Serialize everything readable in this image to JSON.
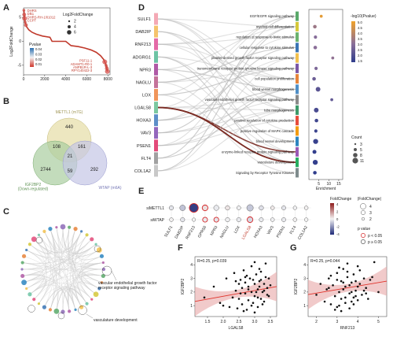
{
  "figure": {
    "panel_labels": [
      "A",
      "B",
      "C",
      "D",
      "E",
      "F",
      "G"
    ]
  },
  "chart_data": [
    {
      "panel": "A",
      "type": "scatter",
      "ylabel": "Log2FoldChange",
      "xticks": [
        0,
        2000,
        4000,
        6000,
        8000
      ],
      "yticks": [
        -5,
        0,
        5
      ],
      "ylim": [
        -7,
        7
      ],
      "xlim": [
        0,
        8200
      ],
      "gene_labels_top": [
        "DHRS",
        "Dlk1",
        "DHRS-RH-1/01012",
        "CCPT"
      ],
      "gene_labels_bottom": [
        "PSF11-1",
        "ADAMT1-R0-1",
        "ANPB1R-L-3",
        "RPY140422-3"
      ],
      "legend_size": {
        "title": "Log2FoldChange",
        "values": [
          "2",
          "4",
          "6"
        ]
      },
      "legend_color": {
        "title": "Pvalue",
        "ticks": [
          "0.04",
          "0.03",
          "0.02",
          "0.01"
        ]
      },
      "curve": [
        [
          30,
          6.5
        ],
        [
          80,
          5.0
        ],
        [
          150,
          4.0
        ],
        [
          300,
          3.0
        ],
        [
          500,
          2.4
        ],
        [
          800,
          1.9
        ],
        [
          1200,
          1.5
        ],
        [
          1800,
          1.1
        ],
        [
          2500,
          0.85
        ],
        [
          2700,
          0.0
        ],
        [
          4000,
          0.0
        ],
        [
          4500,
          -0.9
        ],
        [
          5200,
          -1.1
        ],
        [
          5800,
          -1.4
        ],
        [
          6400,
          -1.8
        ],
        [
          6900,
          -2.3
        ],
        [
          7300,
          -3.0
        ],
        [
          7600,
          -3.8
        ],
        [
          7800,
          -4.8
        ],
        [
          7950,
          -6.3
        ]
      ]
    },
    {
      "panel": "B",
      "type": "table",
      "sets": [
        {
          "name": "METTL1 (m7G)",
          "color": "#e8e1b0"
        },
        {
          "name": "IGF2BP2\n(Down-regulated)",
          "color": "#a9cda0"
        },
        {
          "name": "WTAP (m6A)",
          "color": "#c4c6e6"
        }
      ],
      "regions": {
        "METTL1_only": 440,
        "IGF2BP2_only": 2744,
        "WTAP_only": 292,
        "METTL1_IGF2BP2": 108,
        "METTL1_WTAP": 161,
        "IGF2BP2_WTAP": 59,
        "all_three": 21
      }
    },
    {
      "panel": "C",
      "type": "scatter",
      "description_labels": [
        "vascular endothelial growth factor\nreceptor signaling pathway",
        "vasculature development"
      ]
    },
    {
      "panel": "D",
      "type": "table",
      "genes": [
        {
          "name": "SULF1",
          "color": "#f4a9b5"
        },
        {
          "name": "DAB2IP",
          "color": "#f5c36b"
        },
        {
          "name": "RNF213",
          "color": "#e46aa7"
        },
        {
          "name": "ADGRG1",
          "color": "#6dc4a4"
        },
        {
          "name": "NPR3",
          "color": "#b05aa6"
        },
        {
          "name": "NAGLU",
          "color": "#c4739a"
        },
        {
          "name": "LOX",
          "color": "#f0955a"
        },
        {
          "name": "LGALS8",
          "color": "#7cc8a0"
        },
        {
          "name": "HOXA3",
          "color": "#5d8fc8"
        },
        {
          "name": "VAV3",
          "color": "#9467bd"
        },
        {
          "name": "PSEN1",
          "color": "#e34b7a"
        },
        {
          "name": "FLT4",
          "color": "#a1a1a1"
        },
        {
          "name": "COL1A2",
          "color": "#c8c8c8"
        }
      ],
      "pathways": [
        {
          "name": "EGF/EGFR signaling pathway",
          "color": "#5aa96a",
          "count": 3,
          "enrichment": 6.2,
          "logp": 4.8
        },
        {
          "name": "myeloid cell differentiation",
          "color": "#d5c83a",
          "count": 5,
          "enrichment": 3.0,
          "logp": 3.6
        },
        {
          "name": "regulation of response to biotic stimulus",
          "color": "#6bb36e",
          "count": 4,
          "enrichment": 3.3,
          "logp": 3.2
        },
        {
          "name": "cellular response to cytokine stimulus",
          "color": "#3a75b5",
          "count": 5,
          "enrichment": 3.2,
          "logp": 3.3
        },
        {
          "name": "platelet-derived growth factor receptor signaling pathway",
          "color": "#f2c14e",
          "count": 3,
          "enrichment": 12.0,
          "logp": 3.4
        },
        {
          "name": "transmembrane receptor protein tyrosine kinase signaling pathway",
          "color": "#7b57a6",
          "count": 4,
          "enrichment": 3.6,
          "logp": 3.0
        },
        {
          "name": "cell population proliferation",
          "color": "#e7843a",
          "count": 5,
          "enrichment": 2.6,
          "logp": 2.6
        },
        {
          "name": "blood vessel morphogenesis",
          "color": "#4f8fc6",
          "count": 8,
          "enrichment": 4.6,
          "logp": 2.2
        },
        {
          "name": "vascular endothelial growth factor receptor signaling pathway",
          "color": "#8a8a8a",
          "count": 3,
          "enrichment": 11.5,
          "logp": 2.4
        },
        {
          "name": "tube morphogenesis",
          "color": "#3c9a6a",
          "count": 8,
          "enrichment": 3.7,
          "logp": 1.8
        },
        {
          "name": "positive regulation of cytokine production",
          "color": "#e74c3c",
          "count": 5,
          "enrichment": 3.8,
          "logp": 1.6
        },
        {
          "name": "positive regulation of MAPK cascade",
          "color": "#f39c12",
          "count": 4,
          "enrichment": 3.5,
          "logp": 1.5
        },
        {
          "name": "blood vessel development",
          "color": "#2e86c1",
          "count": 9,
          "enrichment": 3.4,
          "logp": 1.4
        },
        {
          "name": "enzyme-linked receptor protein signaling pathway",
          "color": "#9b59b6",
          "count": 6,
          "enrichment": 2.8,
          "logp": 1.3
        },
        {
          "name": "vasculature development",
          "color": "#27ae60",
          "count": 9,
          "enrichment": 3.2,
          "logp": 1.3
        },
        {
          "name": "Signaling by Receptor Tyrosine Kinases",
          "color": "#7f8c8d",
          "count": 5,
          "enrichment": 3.0,
          "logp": 1.2
        }
      ],
      "xlabel": "Enrichment",
      "xticks": [
        5,
        10,
        15
      ],
      "xlim": [
        0,
        17
      ],
      "legend_color": {
        "title": "-log10(Pvalue)",
        "ticks": [
          "5.0",
          "4.5",
          "4.0",
          "3.5",
          "3.0",
          "2.5",
          "2.0",
          "1.5"
        ]
      },
      "legend_size": {
        "title": "Count",
        "values": [
          "3",
          "5",
          "8",
          "11"
        ]
      }
    },
    {
      "panel": "E",
      "type": "heatmap",
      "rows": [
        "siMETTL1",
        "siWTAP"
      ],
      "columns": [
        "SULF1",
        "DAB2IP",
        "RNF213",
        "GPR56",
        "NPR3",
        "NAGLU",
        "LOX",
        "LGALS8",
        "HOXA3",
        "VAV3",
        "PSEN1",
        "FLT4",
        "COL1A2"
      ],
      "highlight_column": "LGALS8",
      "fold_change": [
        [
          -0.3,
          -1.0,
          -3.6,
          0.4,
          -0.2,
          0.3,
          -0.1,
          -0.9,
          -0.4,
          0.2,
          -0.3,
          -0.1,
          0.1
        ],
        [
          0.1,
          -0.3,
          0.0,
          -0.2,
          -0.3,
          -0.1,
          -0.2,
          -0.6,
          -0.2,
          -0.1,
          -0.2,
          0.1,
          0.0
        ]
      ],
      "abs_fold_change": [
        [
          1.5,
          2.3,
          4.2,
          2.3,
          2.0,
          1.6,
          1.3,
          2.8,
          1.6,
          1.2,
          1.4,
          1.1,
          1.2
        ],
        [
          1.2,
          1.5,
          1.0,
          1.8,
          1.8,
          1.5,
          1.5,
          2.3,
          1.4,
          1.2,
          1.4,
          1.2,
          1.1
        ]
      ],
      "significant": [
        [
          false,
          false,
          true,
          true,
          false,
          false,
          false,
          false,
          false,
          false,
          false,
          false,
          false
        ],
        [
          false,
          false,
          false,
          true,
          true,
          false,
          false,
          true,
          false,
          false,
          false,
          false,
          false
        ]
      ],
      "legend_color": {
        "title": "FoldChange",
        "ticks": [
          "4",
          "2",
          "0",
          "-2",
          "-4"
        ]
      },
      "legend_size": {
        "title": "|FoldChange|",
        "values": [
          "4",
          "3",
          "2"
        ]
      },
      "legend_p": {
        "title": "p value",
        "values": [
          "p < 0.05",
          "p ≥ 0.05"
        ]
      }
    },
    {
      "panel": "F",
      "type": "scatter",
      "annotation": "R=0.25, p=0.039",
      "xlabel": "LGALS8",
      "ylabel": "IGF2BP2",
      "xticks": [
        "1.5",
        "2.0",
        "2.5",
        "3.0",
        "3.5"
      ],
      "yticks": [
        "1",
        "2",
        "3",
        "4"
      ],
      "xlim": [
        1.1,
        3.7
      ],
      "ylim": [
        0.2,
        4.6
      ],
      "fit": {
        "slope": 0.42,
        "intercept": 0.85
      },
      "x": [
        1.4,
        1.7,
        1.9,
        2.0,
        2.1,
        2.2,
        2.3,
        2.35,
        2.4,
        2.45,
        2.5,
        2.55,
        2.6,
        2.6,
        2.65,
        2.7,
        2.7,
        2.75,
        2.8,
        2.8,
        2.85,
        2.9,
        2.9,
        2.95,
        3.0,
        3.0,
        3.05,
        3.1,
        3.1,
        3.15,
        3.2,
        3.2,
        3.25,
        3.3,
        3.3,
        3.35,
        3.4,
        3.4,
        3.45,
        3.5,
        2.4,
        2.75,
        3.05,
        3.25,
        2.9,
        3.15,
        2.55,
        3.35,
        2.65,
        3.0,
        3.1,
        3.2,
        2.8,
        2.5,
        3.45,
        3.3,
        2.7,
        3.0,
        3.15,
        2.95
      ],
      "y": [
        1.6,
        2.4,
        1.2,
        1.0,
        3.0,
        0.9,
        1.6,
        3.4,
        2.1,
        0.8,
        1.5,
        2.9,
        2.3,
        1.1,
        3.6,
        1.9,
        2.7,
        0.7,
        2.4,
        1.4,
        3.0,
        2.0,
        3.9,
        1.2,
        2.6,
        1.7,
        3.3,
        2.2,
        0.9,
        2.8,
        1.5,
        3.5,
        2.0,
        2.6,
        1.3,
        4.1,
        2.3,
        1.8,
        3.0,
        2.5,
        2.8,
        3.2,
        2.0,
        1.1,
        1.0,
        2.4,
        1.9,
        3.1,
        0.6,
        4.2,
        1.6,
        2.9,
        2.2,
        2.6,
        1.7,
        2.1,
        3.1,
        0.5,
        3.7,
        2.9
      ]
    },
    {
      "panel": "G",
      "type": "scatter",
      "annotation": "R=0.25, p=0.044",
      "xlabel": "RNF213",
      "ylabel": "IGF2BP2",
      "xticks": [
        "2",
        "3",
        "4",
        "5"
      ],
      "yticks": [
        "1",
        "2",
        "3",
        "4"
      ],
      "xlim": [
        1.6,
        5.4
      ],
      "ylim": [
        0.2,
        4.6
      ],
      "fit": {
        "slope": 0.26,
        "intercept": 1.4
      },
      "x": [
        2.0,
        2.2,
        2.4,
        2.5,
        2.6,
        2.7,
        2.8,
        2.9,
        3.0,
        3.0,
        3.1,
        3.2,
        3.2,
        3.3,
        3.4,
        3.4,
        3.5,
        3.6,
        3.6,
        3.7,
        3.8,
        3.8,
        3.9,
        4.0,
        4.0,
        4.1,
        4.2,
        4.3,
        4.4,
        4.5,
        4.6,
        4.8,
        5.0,
        3.1,
        3.3,
        3.5,
        3.7,
        3.9,
        2.9,
        3.6,
        4.1,
        3.4,
        3.0,
        4.3,
        2.7,
        3.8,
        3.2,
        4.0,
        3.5,
        4.4,
        3.3,
        2.6,
        4.7,
        3.9,
        3.1,
        3.7
      ],
      "y": [
        1.8,
        2.6,
        1.3,
        2.2,
        3.0,
        1.1,
        2.5,
        1.7,
        3.4,
        0.9,
        2.0,
        2.8,
        1.5,
        3.7,
        1.2,
        2.4,
        3.1,
        1.9,
        0.8,
        2.7,
        1.6,
        3.3,
        2.1,
        1.4,
        3.9,
        2.6,
        1.8,
        3.0,
        2.3,
        1.5,
        2.9,
        4.2,
        2.0,
        1.0,
        2.2,
        3.5,
        1.3,
        2.8,
        0.7,
        2.5,
        3.6,
        1.6,
        2.9,
        2.1,
        3.2,
        1.1,
        0.6,
        2.4,
        4.1,
        1.9,
        2.7,
        2.3,
        3.1,
        1.7,
        3.8,
        2.0
      ]
    }
  ]
}
